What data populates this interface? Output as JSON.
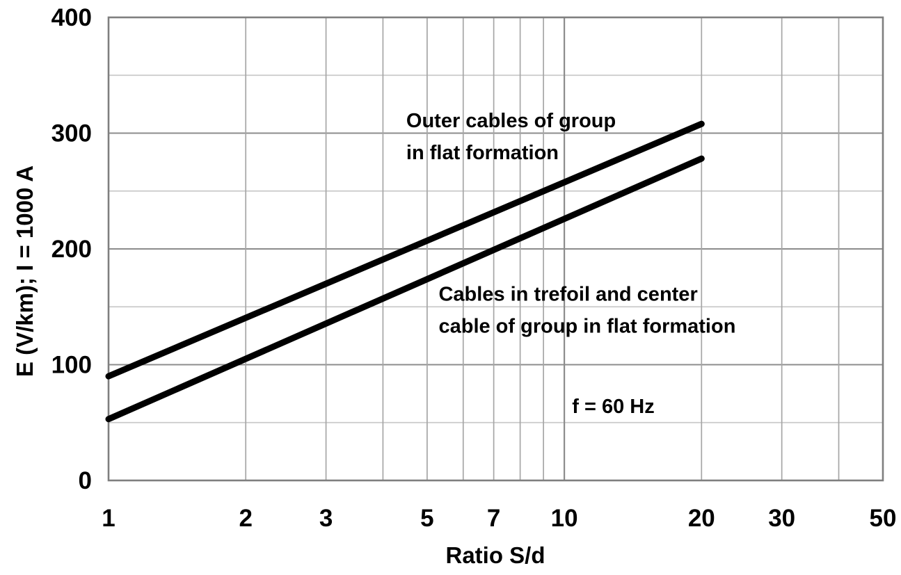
{
  "chart_data": {
    "type": "line",
    "title": "",
    "xlabel": "Ratio S/d",
    "ylabel": "E (V/km); I = 1000 A",
    "x_scale": "log",
    "x_range": [
      1,
      50
    ],
    "y_range": [
      0,
      400
    ],
    "x_ticks": [
      1,
      2,
      3,
      5,
      7,
      10,
      20,
      30,
      50
    ],
    "x_gridlines": [
      2,
      3,
      4,
      5,
      6,
      7,
      8,
      9,
      10,
      20,
      30,
      40
    ],
    "x_gridlines_major": [
      10
    ],
    "y_ticks": [
      0,
      100,
      200,
      300,
      400
    ],
    "y_gridlines_minor": [
      50,
      150,
      250,
      350
    ],
    "y_gridlines_major": [
      100,
      200,
      300
    ],
    "grid": true,
    "legend": "none",
    "series": [
      {
        "name": "Outer cables of group in flat formation",
        "points": [
          {
            "x": 1,
            "y": 90
          },
          {
            "x": 20,
            "y": 308
          }
        ],
        "color": "#000000"
      },
      {
        "name": "Cables in trefoil and center cable of group in flat formation",
        "points": [
          {
            "x": 1,
            "y": 53
          },
          {
            "x": 20,
            "y": 278
          }
        ],
        "color": "#000000"
      }
    ],
    "annotations": [
      {
        "lines": [
          "Outer cables of group",
          "in flat formation"
        ],
        "x": 4.5,
        "y": 322
      },
      {
        "lines": [
          "Cables in trefoil and center",
          "cable of group in flat formation"
        ],
        "x": 5.3,
        "y": 172
      },
      {
        "lines": [
          "f = 60 Hz"
        ],
        "x": 10.4,
        "y": 75
      }
    ]
  },
  "colors": {
    "background": "#ffffff",
    "text": "#000000",
    "series_line": "#000000",
    "border": "#7f7f7f",
    "grid_h_minor": "#c9c9c9",
    "grid_h_major": "#8c8c8c",
    "grid_v": "#a6a6a6",
    "grid_v_major": "#8c8c8c"
  }
}
